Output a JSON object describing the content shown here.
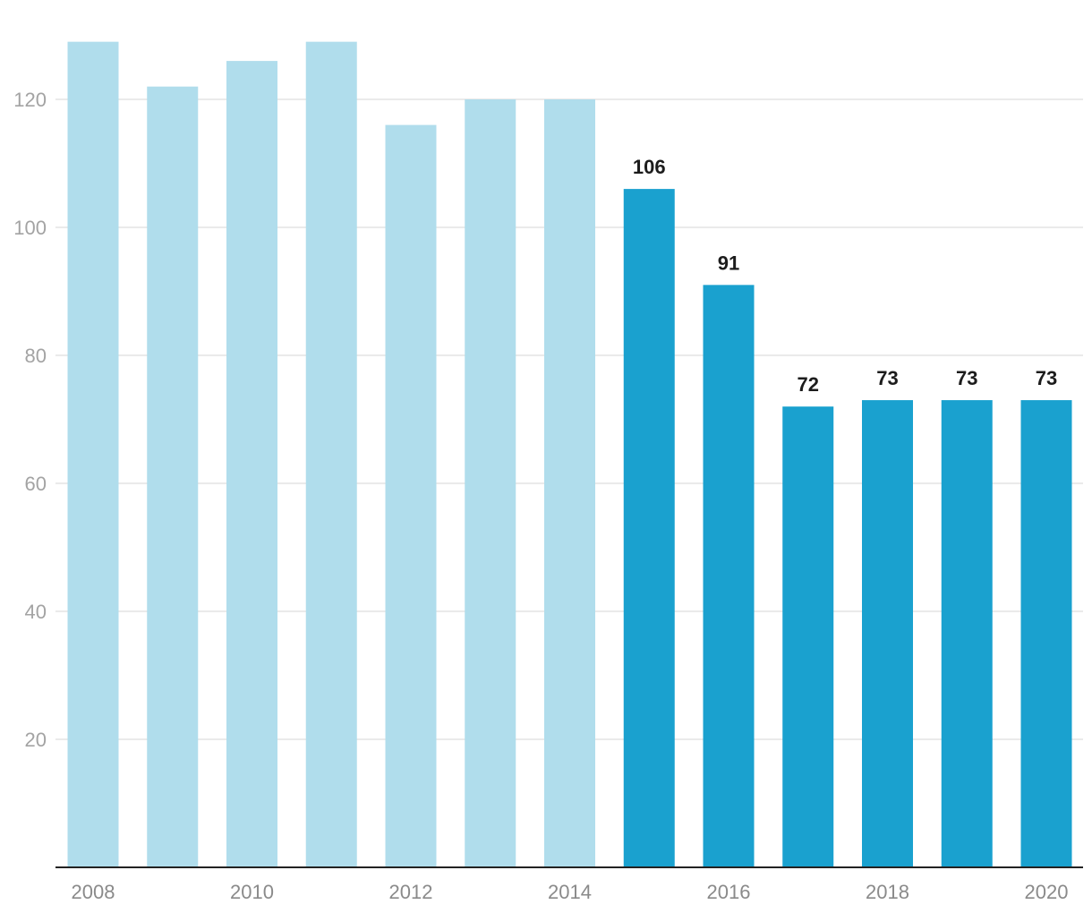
{
  "chart_data": {
    "type": "bar",
    "title": "",
    "xlabel": "",
    "ylabel": "",
    "categories": [
      "2008",
      "2009",
      "2010",
      "2011",
      "2012",
      "2013",
      "2014",
      "2015",
      "2016",
      "2017",
      "2018",
      "2019",
      "2020"
    ],
    "values": [
      129,
      122,
      126,
      129,
      116,
      120,
      120,
      106,
      91,
      72,
      73,
      73,
      73
    ],
    "data_labels": [
      "",
      "",
      "",
      "",
      "",
      "",
      "",
      "106",
      "91",
      "72",
      "73",
      "73",
      "73"
    ],
    "x_tick_labels": [
      "2008",
      "",
      "2010",
      "",
      "2012",
      "",
      "2014",
      "",
      "2016",
      "",
      "2018",
      "",
      "2020"
    ],
    "y_ticks": [
      20,
      40,
      60,
      80,
      100,
      120
    ],
    "ylim": [
      0,
      129
    ],
    "grid": true,
    "colors": {
      "highlighted_bar": "#1aa1cf",
      "muted_bar": "#b0ddec",
      "grid": "#e3e3e3",
      "axis": "#222222"
    },
    "highlighted": [
      false,
      false,
      false,
      false,
      false,
      false,
      false,
      true,
      true,
      true,
      true,
      true,
      true
    ]
  }
}
